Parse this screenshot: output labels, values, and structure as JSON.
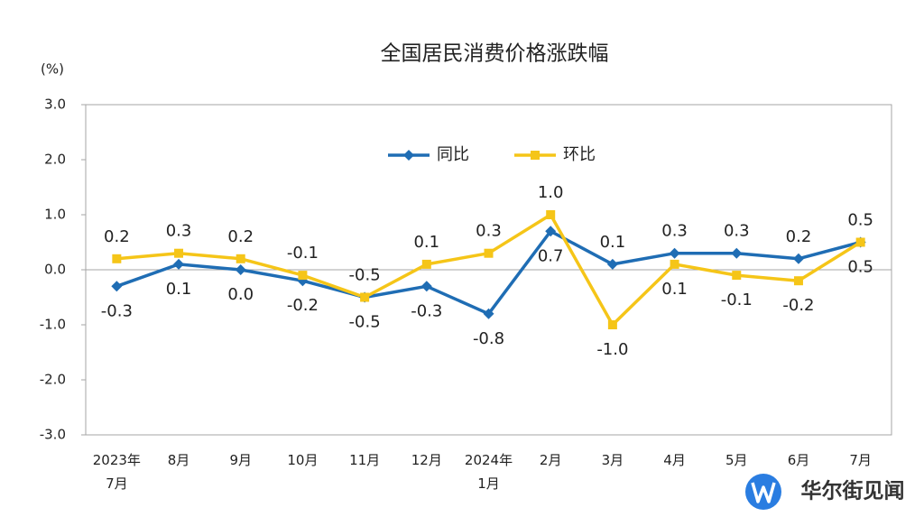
{
  "chart_data": {
    "type": "line",
    "title": "全国居民消费价格涨跌幅",
    "y_label": "(%)",
    "categories": [
      "2023年\n7月",
      "8月",
      "9月",
      "10月",
      "11月",
      "12月",
      "2024年\n1月",
      "2月",
      "3月",
      "4月",
      "5月",
      "6月",
      "7月"
    ],
    "series": [
      {
        "name": "同比",
        "color": "#1f6db4",
        "values": [
          -0.3,
          0.1,
          0.0,
          -0.2,
          -0.5,
          -0.3,
          -0.8,
          0.7,
          0.1,
          0.3,
          0.3,
          0.2,
          0.5
        ],
        "value_labels": [
          "-0.3",
          "0.1",
          "0.0",
          "-0.2",
          "-0.5",
          "-0.3",
          "-0.8",
          "0.7",
          "0.1",
          "0.3",
          "0.3",
          "0.2",
          "0.5"
        ]
      },
      {
        "name": "环比",
        "color": "#f5c518",
        "values": [
          0.2,
          0.3,
          0.2,
          -0.1,
          -0.5,
          0.1,
          0.3,
          1.0,
          -1.0,
          0.1,
          -0.1,
          -0.2,
          0.5
        ],
        "value_labels": [
          "0.2",
          "0.3",
          "0.2",
          "-0.1",
          "-0.5",
          "0.1",
          "0.3",
          "1.0",
          "-1.0",
          "0.1",
          "-0.1",
          "-0.2",
          "0.5"
        ]
      }
    ],
    "ylim": [
      -3,
      3
    ],
    "yticks": [
      {
        "value": -3,
        "label": "-3.0"
      },
      {
        "value": -2,
        "label": "-2.0"
      },
      {
        "value": -1,
        "label": "-1.0"
      },
      {
        "value": 0,
        "label": "0.0"
      },
      {
        "value": 1,
        "label": "1.0"
      },
      {
        "value": 2,
        "label": "2.0"
      },
      {
        "value": 3,
        "label": "3.0"
      }
    ],
    "legend": "top",
    "watermark": "华尔街见闻"
  }
}
